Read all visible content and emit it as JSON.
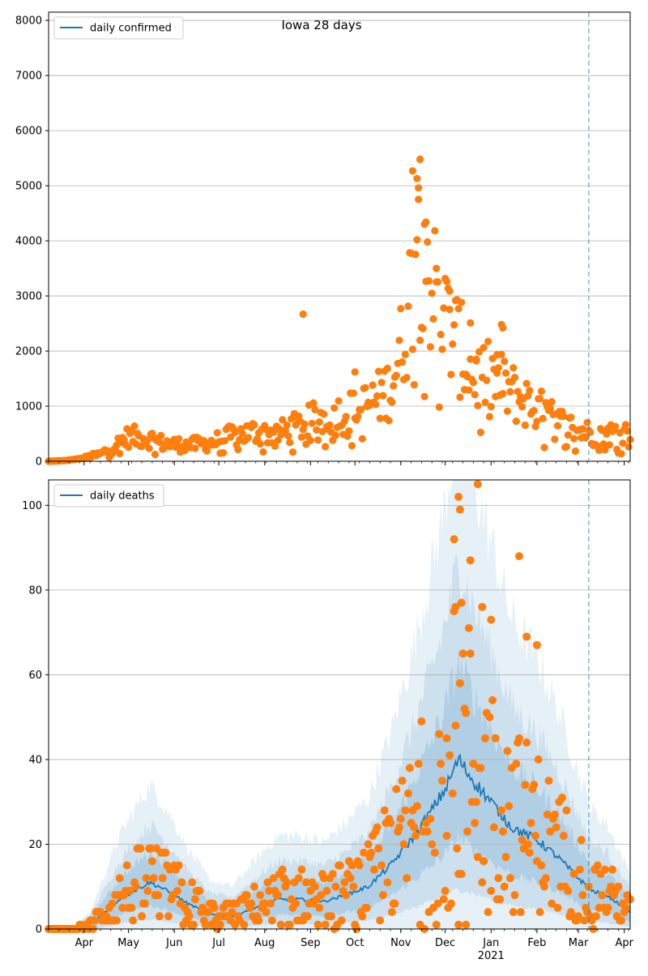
{
  "chart_data": [
    {
      "type": "scatter",
      "title": "Iowa 28 days",
      "ylim": [
        0,
        8150
      ],
      "yticks": [
        0,
        1000,
        2000,
        3000,
        4000,
        5000,
        6000,
        7000,
        8000
      ],
      "legend": {
        "position": "top-left",
        "entries": [
          "daily confirmed"
        ]
      },
      "grid": "y",
      "vline_date": "2021-03-08",
      "series": [
        {
          "name": "daily confirmed",
          "kind": "points",
          "color": "#ff7f0e",
          "anchors": [
            [
              "2020-03-08",
              0
            ],
            [
              "2020-03-20",
              15
            ],
            [
              "2020-04-01",
              60
            ],
            [
              "2020-04-12",
              130
            ],
            [
              "2020-04-22",
              280
            ],
            [
              "2020-05-01",
              450
            ],
            [
              "2020-05-15",
              420
            ],
            [
              "2020-05-25",
              320
            ],
            [
              "2020-06-10",
              290
            ],
            [
              "2020-06-25",
              330
            ],
            [
              "2020-07-10",
              460
            ],
            [
              "2020-07-25",
              530
            ],
            [
              "2020-08-10",
              500
            ],
            [
              "2020-08-25",
              640
            ],
            [
              "2020-09-05",
              760
            ],
            [
              "2020-09-20",
              850
            ],
            [
              "2020-10-01",
              900
            ],
            [
              "2020-10-15",
              1100
            ],
            [
              "2020-10-25",
              1350
            ],
            [
              "2020-11-01",
              2000
            ],
            [
              "2020-11-08",
              3100
            ],
            [
              "2020-11-12",
              4550
            ],
            [
              "2020-11-16",
              4200
            ],
            [
              "2020-11-22",
              3200
            ],
            [
              "2020-12-01",
              2550
            ],
            [
              "2020-12-10",
              2100
            ],
            [
              "2020-12-20",
              1550
            ],
            [
              "2021-01-01",
              1500
            ],
            [
              "2021-01-15",
              1250
            ],
            [
              "2021-02-01",
              950
            ],
            [
              "2021-02-15",
              700
            ],
            [
              "2021-03-01",
              560
            ],
            [
              "2021-03-15",
              470
            ],
            [
              "2021-04-05",
              560
            ]
          ],
          "outliers": [
            [
              "2020-08-27",
              2670
            ],
            [
              "2020-11-14",
              5480
            ],
            [
              "2020-11-09",
              5270
            ],
            [
              "2020-11-13",
              4960
            ],
            [
              "2020-11-12",
              5130
            ],
            [
              "2020-11-18",
              4340
            ],
            [
              "2020-11-17",
              4300
            ],
            [
              "2020-11-25",
              3500
            ],
            [
              "2020-12-04",
              3090
            ],
            [
              "2020-12-18",
              2510
            ],
            [
              "2021-01-08",
              2480
            ],
            [
              "2021-01-09",
              2420
            ],
            [
              "2020-10-01",
              1620
            ],
            [
              "2020-12-22",
              1820
            ],
            [
              "2021-01-05",
              1930
            ]
          ]
        }
      ]
    },
    {
      "type": "line",
      "ylim": [
        0,
        106
      ],
      "yticks": [
        0,
        20,
        40,
        60,
        80,
        100
      ],
      "legend": {
        "position": "top-left",
        "entries": [
          "daily deaths"
        ]
      },
      "grid": "y",
      "vline_date": "2021-03-08",
      "x_ticks": [
        "Apr",
        "May",
        "Jun",
        "Jul",
        "Aug",
        "Sep",
        "Oct",
        "Nov",
        "Dec",
        "Jan",
        "Feb",
        "Mar",
        "Apr"
      ],
      "x_year_label": "2021",
      "series": [
        {
          "name": "daily deaths",
          "kind": "line",
          "color": "#1f77b4",
          "anchors": [
            [
              "2020-03-08",
              0
            ],
            [
              "2020-03-25",
              0
            ],
            [
              "2020-04-05",
              1
            ],
            [
              "2020-04-15",
              4
            ],
            [
              "2020-04-25",
              7
            ],
            [
              "2020-05-05",
              9
            ],
            [
              "2020-05-15",
              11
            ],
            [
              "2020-05-22",
              10
            ],
            [
              "2020-06-01",
              8
            ],
            [
              "2020-06-10",
              6
            ],
            [
              "2020-06-25",
              3.5
            ],
            [
              "2020-07-10",
              3
            ],
            [
              "2020-07-25",
              5
            ],
            [
              "2020-08-10",
              7
            ],
            [
              "2020-08-25",
              7
            ],
            [
              "2020-09-10",
              6.5
            ],
            [
              "2020-09-25",
              8
            ],
            [
              "2020-10-10",
              10
            ],
            [
              "2020-10-25",
              15
            ],
            [
              "2020-11-08",
              21
            ],
            [
              "2020-11-20",
              27
            ],
            [
              "2020-12-01",
              33
            ],
            [
              "2020-12-10",
              40
            ],
            [
              "2020-12-20",
              35
            ],
            [
              "2021-01-01",
              30
            ],
            [
              "2021-01-15",
              24
            ],
            [
              "2021-02-01",
              21
            ],
            [
              "2021-02-15",
              17
            ],
            [
              "2021-03-01",
              12
            ],
            [
              "2021-03-10",
              9
            ],
            [
              "2021-03-20",
              8
            ],
            [
              "2021-04-05",
              4
            ]
          ]
        },
        {
          "name": "daily deaths points",
          "kind": "points",
          "color": "#ff7f0e",
          "outliers": [
            [
              "2020-12-10",
              102
            ],
            [
              "2020-12-11",
              99
            ],
            [
              "2020-12-07",
              92
            ],
            [
              "2020-12-18",
              87
            ],
            [
              "2021-01-20",
              88
            ],
            [
              "2020-12-12",
              77
            ],
            [
              "2020-12-08",
              76
            ],
            [
              "2020-12-26",
              76
            ],
            [
              "2021-01-01",
              73
            ],
            [
              "2021-01-25",
              69
            ],
            [
              "2021-02-01",
              67
            ],
            [
              "2020-12-23",
              105
            ],
            [
              "2020-12-02",
              45
            ],
            [
              "2020-12-10",
              1
            ],
            [
              "2020-12-15",
              1
            ]
          ]
        }
      ]
    }
  ]
}
